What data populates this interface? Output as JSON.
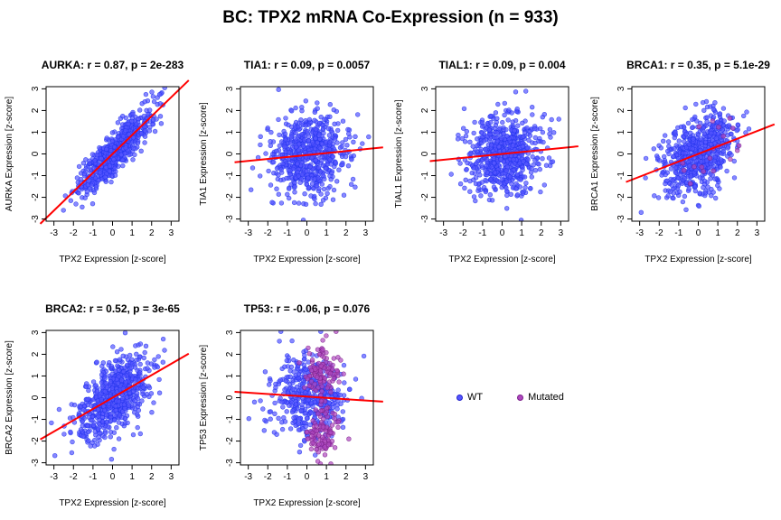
{
  "figure": {
    "title": "BC: TPX2 mRNA Co-Expression (n = 933)",
    "legend": [
      {
        "label": "WT",
        "color": "#5555ff"
      },
      {
        "label": "Mutated",
        "color": "#b048c0"
      }
    ]
  },
  "chart_data": [
    {
      "type": "scatter",
      "title": "AURKA: r = 0.87, p = 2e-283",
      "xlabel": "TPX2 Expression [z-score]",
      "ylabel": "AURKA Expression [z-score]",
      "xlim": [
        -3.4,
        3.4
      ],
      "ylim": [
        -3.1,
        3.1
      ],
      "xticks": [
        -3,
        -2,
        -1,
        0,
        1,
        2,
        3
      ],
      "yticks": [
        -3,
        -2,
        -1,
        0,
        1,
        2,
        3
      ],
      "regression": {
        "slope": 0.87,
        "intercept": 0.0
      },
      "r": 0.87,
      "n": 933,
      "colors": {
        "points": "#5555ff",
        "line": "#ff0000"
      }
    },
    {
      "type": "scatter",
      "title": "TIA1: r = 0.09, p = 0.0057",
      "xlabel": "TPX2 Expression [z-score]",
      "ylabel": "TIA1 Expression [z-score]",
      "xlim": [
        -3.4,
        3.4
      ],
      "ylim": [
        -3.1,
        3.1
      ],
      "xticks": [
        -3,
        -2,
        -1,
        0,
        1,
        2,
        3
      ],
      "yticks": [
        -3,
        -2,
        -1,
        0,
        1,
        2,
        3
      ],
      "regression": {
        "slope": 0.09,
        "intercept": -0.05
      },
      "r": 0.09,
      "n": 933,
      "colors": {
        "points": "#5555ff",
        "line": "#ff0000"
      }
    },
    {
      "type": "scatter",
      "title": "TIAL1: r = 0.09, p = 0.004",
      "xlabel": "TPX2 Expression [z-score]",
      "ylabel": "TIAL1 Expression [z-score]",
      "xlim": [
        -3.4,
        3.4
      ],
      "ylim": [
        -3.1,
        3.1
      ],
      "xticks": [
        -3,
        -2,
        -1,
        0,
        1,
        2,
        3
      ],
      "yticks": [
        -3,
        -2,
        -1,
        0,
        1,
        2,
        3
      ],
      "regression": {
        "slope": 0.09,
        "intercept": 0.0
      },
      "r": 0.09,
      "n": 933,
      "colors": {
        "points": "#5555ff",
        "line": "#ff0000"
      }
    },
    {
      "type": "scatter",
      "title": "BRCA1: r = 0.35, p = 5.1e-29",
      "xlabel": "TPX2 Expression [z-score]",
      "ylabel": "BRCA1 Expression [z-score]",
      "xlim": [
        -3.4,
        3.4
      ],
      "ylim": [
        -3.1,
        3.1
      ],
      "xticks": [
        -3,
        -2,
        -1,
        0,
        1,
        2,
        3
      ],
      "yticks": [
        -3,
        -2,
        -1,
        0,
        1,
        2,
        3
      ],
      "regression": {
        "slope": 0.35,
        "intercept": 0.0
      },
      "r": 0.35,
      "n": 933,
      "colors": {
        "points": "#5555ff",
        "mutated": "#b048c0",
        "line": "#ff0000"
      }
    },
    {
      "type": "scatter",
      "title": "BRCA2: r = 0.52, p = 3e-65",
      "xlabel": "TPX2 Expression [z-score]",
      "ylabel": "BRCA2 Expression [z-score]",
      "xlim": [
        -3.4,
        3.4
      ],
      "ylim": [
        -3.1,
        3.1
      ],
      "xticks": [
        -3,
        -2,
        -1,
        0,
        1,
        2,
        3
      ],
      "yticks": [
        -3,
        -2,
        -1,
        0,
        1,
        2,
        3
      ],
      "regression": {
        "slope": 0.52,
        "intercept": 0.0
      },
      "r": 0.52,
      "n": 933,
      "colors": {
        "points": "#5555ff",
        "line": "#ff0000"
      }
    },
    {
      "type": "scatter",
      "title": "TP53: r = -0.06, p = 0.076",
      "xlabel": "TPX2 Expression [z-score]",
      "ylabel": "TP53 Expression [z-score]",
      "xlim": [
        -3.4,
        3.4
      ],
      "ylim": [
        -3.1,
        3.1
      ],
      "xticks": [
        -3,
        -2,
        -1,
        0,
        1,
        2,
        3
      ],
      "yticks": [
        -3,
        -2,
        -1,
        0,
        1,
        2,
        3
      ],
      "regression": {
        "slope": -0.06,
        "intercept": 0.05
      },
      "r": -0.06,
      "n": 933,
      "colors": {
        "points": "#5555ff",
        "mutated": "#b048c0",
        "line": "#ff0000"
      }
    }
  ]
}
